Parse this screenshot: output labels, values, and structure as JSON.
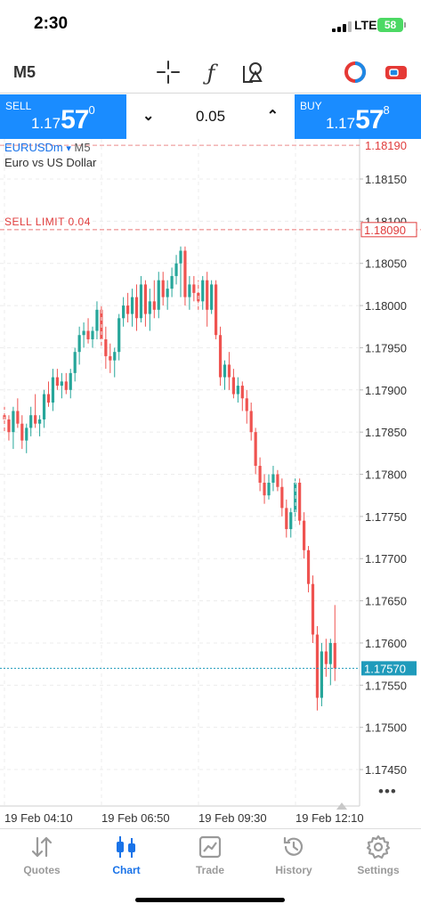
{
  "status_bar": {
    "time": "2:30",
    "network": "LTE",
    "battery": "58"
  },
  "toolbar": {
    "timeframe": "M5",
    "tools": [
      "crosshair-icon",
      "indicators-icon",
      "objects-icon"
    ],
    "right_icons": [
      "one-click-trading-icon",
      "toggle-trade-panel-icon"
    ]
  },
  "trade": {
    "sell_label": "SELL",
    "sell_price_prefix": "1.17",
    "sell_price_big": "57",
    "sell_price_sup": "0",
    "buy_label": "BUY",
    "buy_price_prefix": "1.17",
    "buy_price_big": "57",
    "buy_price_sup": "8",
    "lot": "0.05"
  },
  "chart": {
    "symbol": "EURUSDm",
    "symbol_arrow": "▾",
    "timeframe": "M5",
    "description": "Euro vs US Dollar",
    "sell_limit_label": "SELL LIMIT 0.04",
    "sell_limit_price": "1.18090",
    "top_dashed_price": "1.18190",
    "current_price": "1.17570",
    "more": "•••",
    "colors": {
      "bull": "#26a69a",
      "bear": "#ef5350",
      "sell_limit": "#e03c3c",
      "current": "#1f9bbb",
      "accent": "#1a8cff"
    }
  },
  "chart_data": {
    "type": "candlestick",
    "ylim": [
      1.17415,
      1.182
    ],
    "y_ticks": [
      "1.18150",
      "1.18100",
      "1.18050",
      "1.18000",
      "1.17950",
      "1.17900",
      "1.17850",
      "1.17800",
      "1.17750",
      "1.17700",
      "1.17650",
      "1.17600",
      "1.17550",
      "1.17500",
      "1.17450"
    ],
    "x_ticks": [
      "19 Feb 04:10",
      "19 Feb 06:50",
      "19 Feb 09:30",
      "19 Feb 12:10"
    ],
    "candles": [
      [
        1.1787,
        1.1788,
        1.1785,
        1.17865
      ],
      [
        1.17865,
        1.1787,
        1.1784,
        1.1785
      ],
      [
        1.1785,
        1.1788,
        1.1783,
        1.17875
      ],
      [
        1.17875,
        1.1789,
        1.17855,
        1.1786
      ],
      [
        1.1786,
        1.1787,
        1.1783,
        1.1784
      ],
      [
        1.1784,
        1.1786,
        1.17825,
        1.17855
      ],
      [
        1.17855,
        1.1788,
        1.17845,
        1.1787
      ],
      [
        1.1787,
        1.17895,
        1.17855,
        1.1786
      ],
      [
        1.1786,
        1.1787,
        1.17845,
        1.17865
      ],
      [
        1.17865,
        1.179,
        1.17855,
        1.17895
      ],
      [
        1.17895,
        1.1791,
        1.1788,
        1.17885
      ],
      [
        1.17885,
        1.17925,
        1.17875,
        1.17915
      ],
      [
        1.17915,
        1.17925,
        1.179,
        1.17905
      ],
      [
        1.17905,
        1.1792,
        1.1789,
        1.1791
      ],
      [
        1.1791,
        1.1792,
        1.17895,
        1.179
      ],
      [
        1.179,
        1.17925,
        1.1789,
        1.1792
      ],
      [
        1.1792,
        1.1795,
        1.1791,
        1.17945
      ],
      [
        1.17945,
        1.17975,
        1.1793,
        1.17965
      ],
      [
        1.17965,
        1.1798,
        1.1795,
        1.1797
      ],
      [
        1.1797,
        1.17985,
        1.17955,
        1.1796
      ],
      [
        1.1796,
        1.17975,
        1.1795,
        1.1797
      ],
      [
        1.1797,
        1.18005,
        1.1796,
        1.17995
      ],
      [
        1.17995,
        1.18,
        1.1795,
        1.1796
      ],
      [
        1.1796,
        1.17975,
        1.17925,
        1.1794
      ],
      [
        1.1794,
        1.17955,
        1.1792,
        1.17935
      ],
      [
        1.17935,
        1.1795,
        1.17915,
        1.17945
      ],
      [
        1.17945,
        1.1799,
        1.17935,
        1.17985
      ],
      [
        1.17985,
        1.1801,
        1.17975,
        1.18
      ],
      [
        1.18,
        1.18015,
        1.1798,
        1.1799
      ],
      [
        1.1799,
        1.1802,
        1.17975,
        1.1801
      ],
      [
        1.1801,
        1.18025,
        1.1797,
        1.17985
      ],
      [
        1.17985,
        1.18035,
        1.1798,
        1.18025
      ],
      [
        1.18025,
        1.1803,
        1.17975,
        1.1799
      ],
      [
        1.1799,
        1.1802,
        1.1797,
        1.18005
      ],
      [
        1.18005,
        1.1803,
        1.17985,
        1.17995
      ],
      [
        1.17995,
        1.1804,
        1.17985,
        1.1803
      ],
      [
        1.1803,
        1.1804,
        1.18,
        1.1801
      ],
      [
        1.1801,
        1.1803,
        1.17995,
        1.1802
      ],
      [
        1.1802,
        1.18045,
        1.1801,
        1.18035
      ],
      [
        1.18035,
        1.1806,
        1.18025,
        1.1805
      ],
      [
        1.1805,
        1.1807,
        1.1801,
        1.18065
      ],
      [
        1.18065,
        1.1807,
        1.18,
        1.1801
      ],
      [
        1.1801,
        1.18035,
        1.17995,
        1.18025
      ],
      [
        1.18025,
        1.18035,
        1.18005,
        1.18015
      ],
      [
        1.18015,
        1.1803,
        1.17995,
        1.18005
      ],
      [
        1.18005,
        1.18035,
        1.17995,
        1.1803
      ],
      [
        1.1803,
        1.1804,
        1.17975,
        1.17995
      ],
      [
        1.17995,
        1.1803,
        1.1799,
        1.18025
      ],
      [
        1.18025,
        1.1803,
        1.1796,
        1.17965
      ],
      [
        1.17965,
        1.17975,
        1.17905,
        1.17915
      ],
      [
        1.17915,
        1.17935,
        1.179,
        1.1793
      ],
      [
        1.1793,
        1.17945,
        1.179,
        1.17915
      ],
      [
        1.17915,
        1.17925,
        1.1789,
        1.17895
      ],
      [
        1.17895,
        1.17915,
        1.17885,
        1.17905
      ],
      [
        1.17905,
        1.1791,
        1.17875,
        1.1789
      ],
      [
        1.1789,
        1.179,
        1.1786,
        1.17875
      ],
      [
        1.17875,
        1.17885,
        1.1784,
        1.1785
      ],
      [
        1.1785,
        1.17855,
        1.178,
        1.1781
      ],
      [
        1.1781,
        1.1782,
        1.1778,
        1.1779
      ],
      [
        1.1779,
        1.178,
        1.17765,
        1.17775
      ],
      [
        1.17775,
        1.178,
        1.1777,
        1.1779
      ],
      [
        1.1779,
        1.1781,
        1.1778,
        1.178
      ],
      [
        1.178,
        1.17805,
        1.1778,
        1.17785
      ],
      [
        1.17785,
        1.17795,
        1.1775,
        1.1776
      ],
      [
        1.1776,
        1.1777,
        1.17725,
        1.17735
      ],
      [
        1.17735,
        1.1776,
        1.17725,
        1.17755
      ],
      [
        1.17755,
        1.17795,
        1.17745,
        1.1779
      ],
      [
        1.1779,
        1.17795,
        1.1774,
        1.17745
      ],
      [
        1.17745,
        1.17755,
        1.177,
        1.1771
      ],
      [
        1.1771,
        1.17715,
        1.1766,
        1.1767
      ],
      [
        1.1767,
        1.1768,
        1.176,
        1.1761
      ],
      [
        1.1761,
        1.1762,
        1.1752,
        1.17535
      ],
      [
        1.17535,
        1.176,
        1.17525,
        1.1759
      ],
      [
        1.1759,
        1.17605,
        1.1756,
        1.17575
      ],
      [
        1.17575,
        1.17605,
        1.1755,
        1.176
      ],
      [
        1.176,
        1.17645,
        1.17555,
        1.1757
      ]
    ]
  },
  "tabs": [
    {
      "id": "quotes",
      "label": "Quotes"
    },
    {
      "id": "chart",
      "label": "Chart"
    },
    {
      "id": "trade",
      "label": "Trade"
    },
    {
      "id": "history",
      "label": "History"
    },
    {
      "id": "settings",
      "label": "Settings"
    }
  ]
}
